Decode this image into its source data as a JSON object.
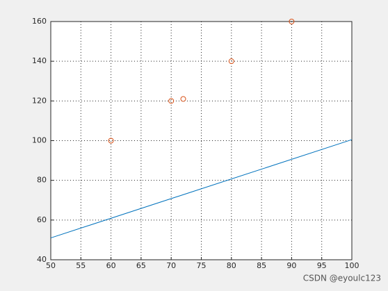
{
  "chart_data": {
    "type": "scatter",
    "series": [
      {
        "color": "#d95319",
        "mode": "markers",
        "x": [
          60,
          70,
          72,
          80,
          90
        ],
        "values": [
          100,
          120,
          121,
          140,
          160
        ]
      },
      {
        "color": "#0072bd",
        "mode": "line",
        "x": [
          50,
          100
        ],
        "values": [
          51,
          100.5
        ]
      }
    ],
    "xlim": [
      50,
      100
    ],
    "xticks": [
      50,
      55,
      60,
      65,
      70,
      75,
      80,
      85,
      90,
      95,
      100
    ],
    "ylim": [
      40,
      160
    ],
    "yticks": [
      40,
      60,
      80,
      100,
      120,
      140,
      160
    ],
    "grid": true
  },
  "watermark": "CSDN @eyoulc123"
}
